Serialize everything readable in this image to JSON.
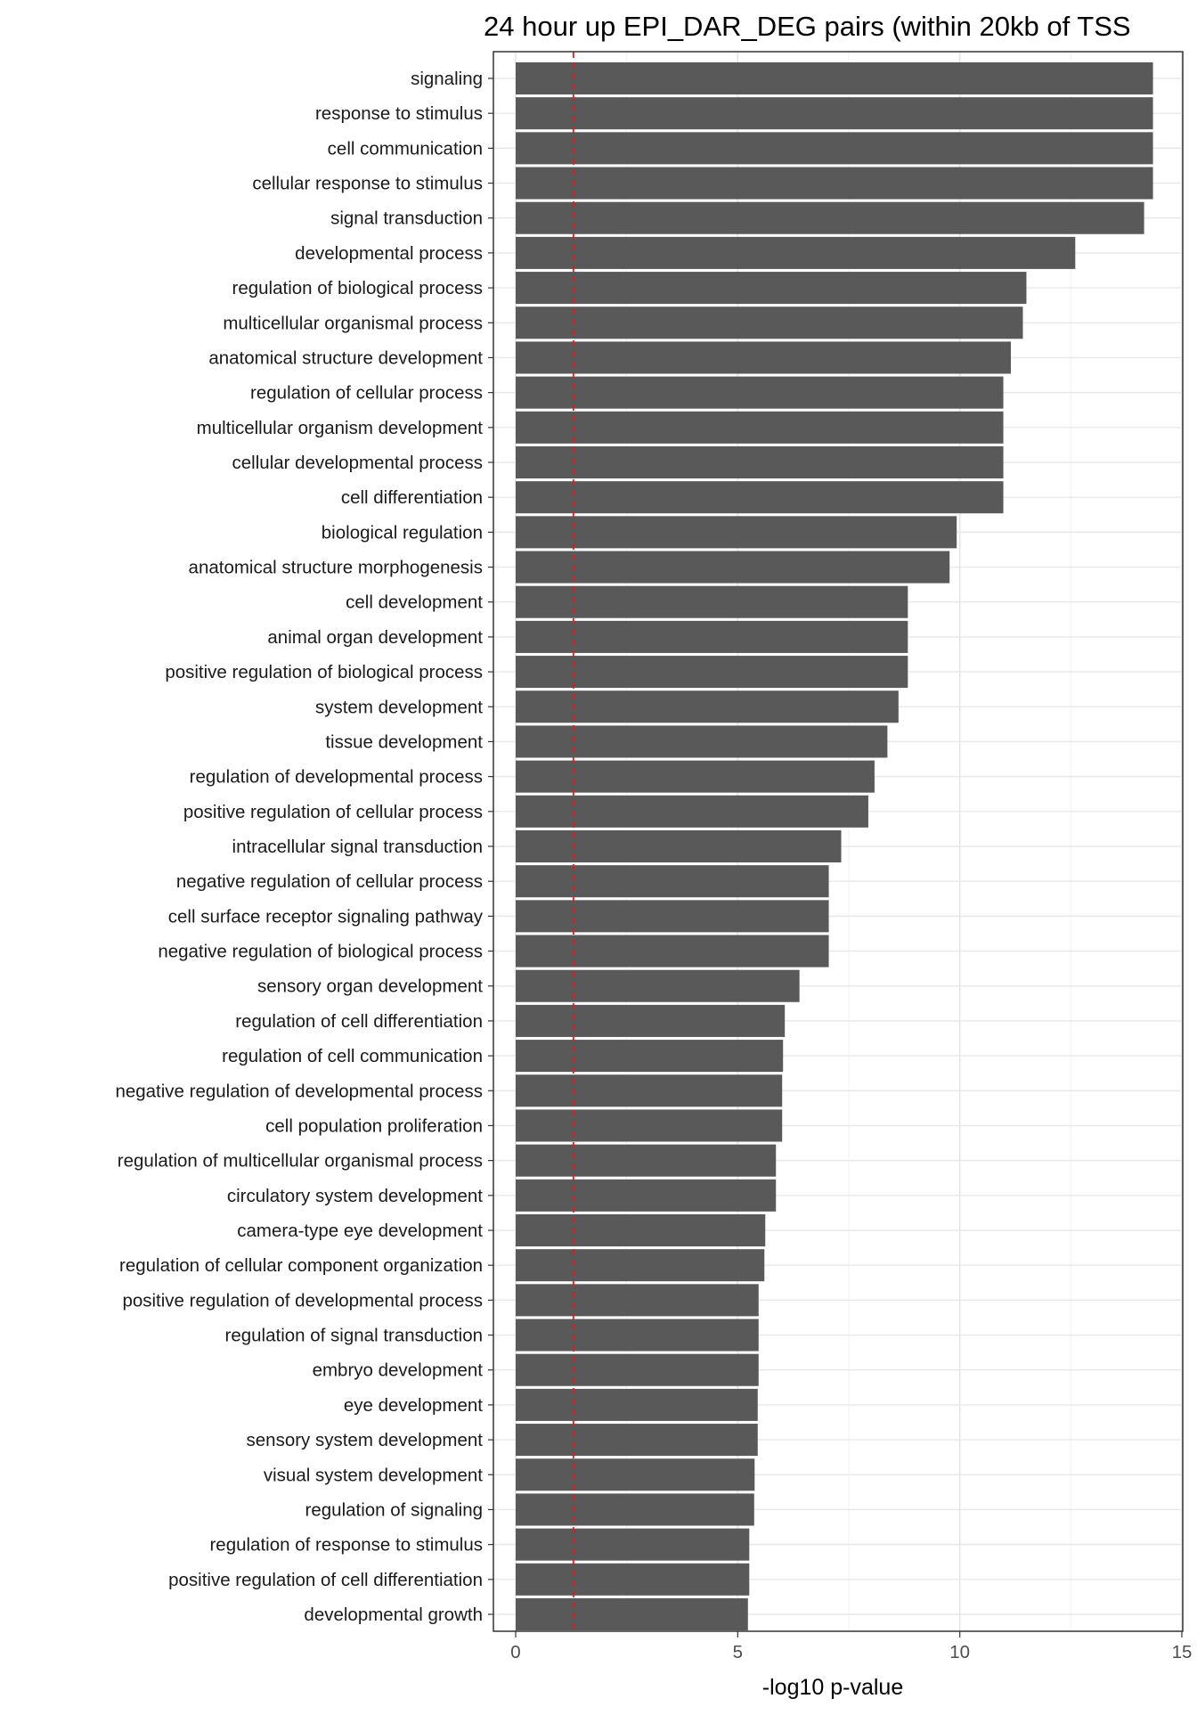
{
  "chart_data": {
    "type": "bar",
    "orientation": "horizontal",
    "title": "24 hour up EPI_DAR_DEG pairs (within 20kb of TSS",
    "xlabel": "-log10 p-value",
    "ylabel": "",
    "xlim": [
      0,
      15
    ],
    "xticks": [
      0,
      5,
      10,
      15
    ],
    "grid": true,
    "legend": "none",
    "reference_line": {
      "x": 1.3,
      "style": "dashed",
      "color": "#e41a1c"
    },
    "bar_color": "#595959",
    "categories": [
      "signaling",
      "response to stimulus",
      "cell communication",
      "cellular response to stimulus",
      "signal transduction",
      "developmental process",
      "regulation of biological process",
      "multicellular organismal process",
      "anatomical structure development",
      "regulation of cellular process",
      "multicellular organism development",
      "cellular developmental process",
      "cell differentiation",
      "biological regulation",
      "anatomical structure morphogenesis",
      "cell development",
      "animal organ development",
      "positive regulation of biological process",
      "system development",
      "tissue development",
      "regulation of developmental process",
      "positive regulation of cellular process",
      "intracellular signal transduction",
      "negative regulation of cellular process",
      "cell surface receptor signaling pathway",
      "negative regulation of biological process",
      "sensory organ development",
      "regulation of cell differentiation",
      "regulation of cell communication",
      "negative regulation of developmental process",
      "cell population proliferation",
      "regulation of multicellular organismal process",
      "circulatory system development",
      "camera-type eye development",
      "regulation of cellular component organization",
      "positive regulation of developmental process",
      "regulation of signal transduction",
      "embryo development",
      "eye development",
      "sensory system development",
      "visual system development",
      "regulation of signaling",
      "regulation of response to stimulus",
      "positive regulation of cell differentiation",
      "developmental growth"
    ],
    "values": [
      14.35,
      14.35,
      14.35,
      14.35,
      14.15,
      12.6,
      11.5,
      11.42,
      11.15,
      10.98,
      10.98,
      10.98,
      10.98,
      9.93,
      9.77,
      8.83,
      8.83,
      8.83,
      8.62,
      8.37,
      8.08,
      7.94,
      7.33,
      7.05,
      7.05,
      7.05,
      6.39,
      6.06,
      6.02,
      6.0,
      6.0,
      5.86,
      5.86,
      5.62,
      5.6,
      5.47,
      5.47,
      5.47,
      5.45,
      5.45,
      5.38,
      5.37,
      5.26,
      5.26,
      5.23
    ]
  }
}
